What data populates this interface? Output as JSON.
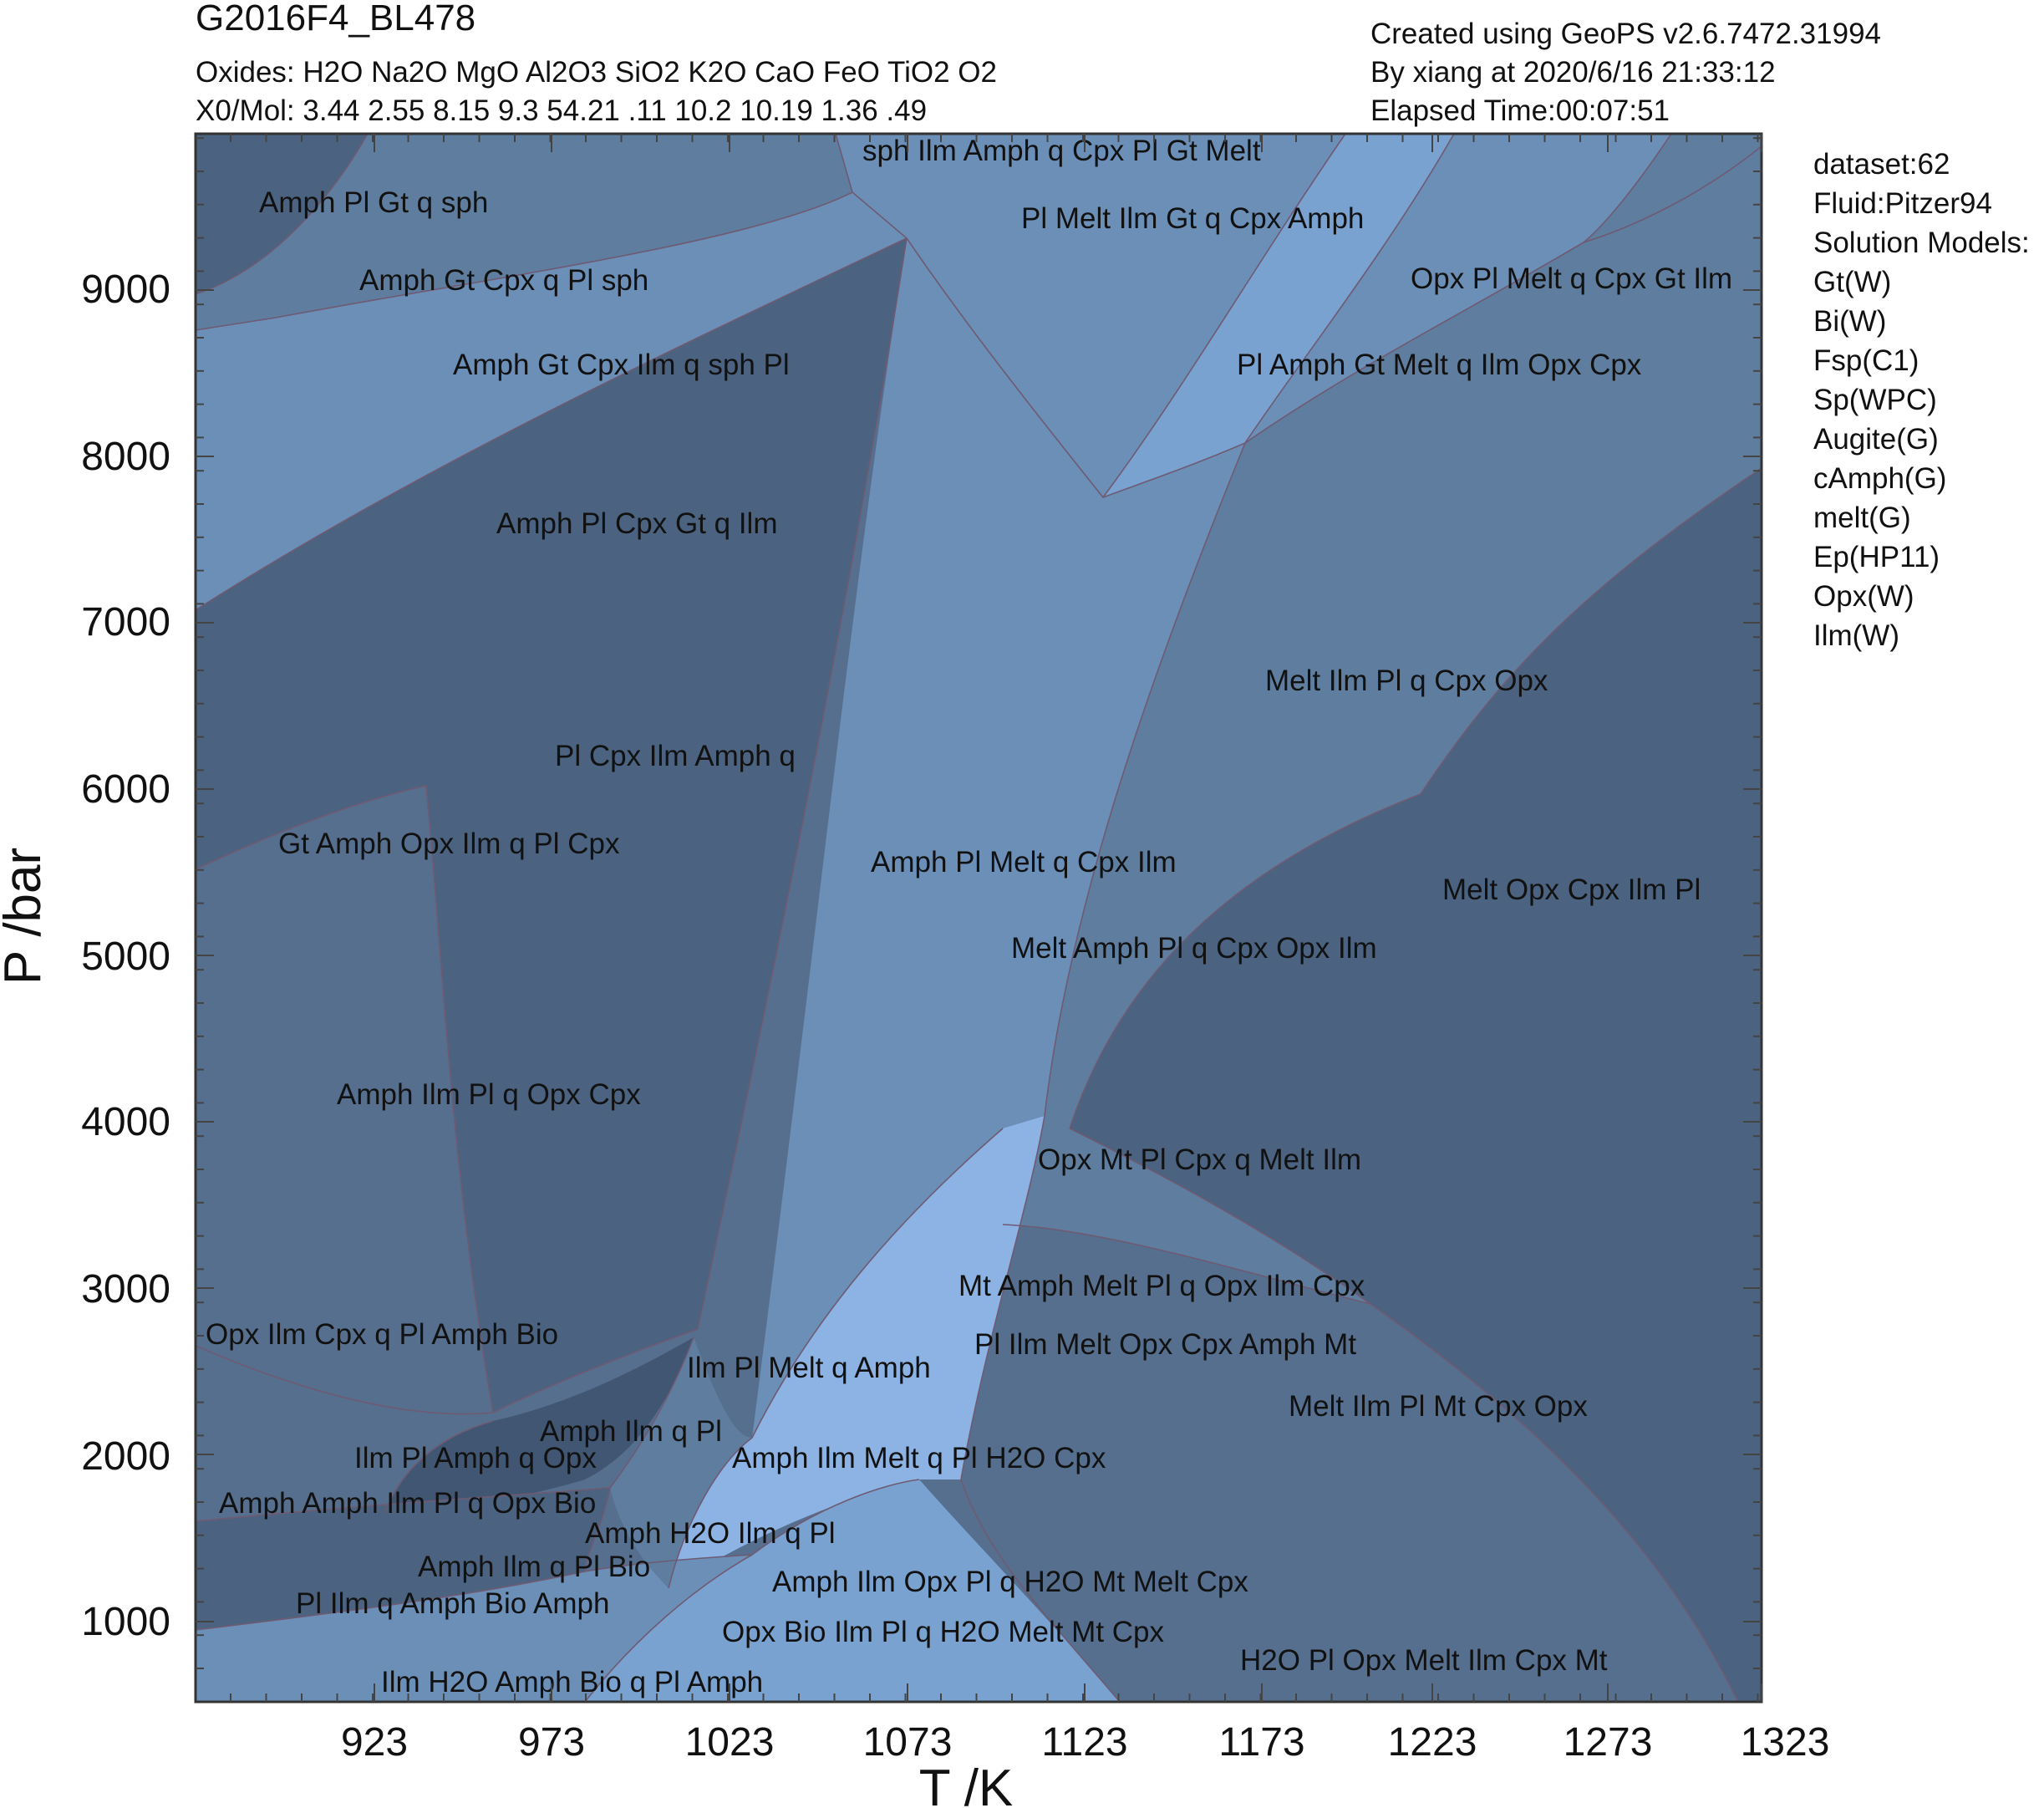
{
  "header": {
    "sample_name": "G2016F4_BL478",
    "oxides_line": "Oxides: H2O Na2O MgO Al2O3 SiO2 K2O CaO FeO TiO2 O2",
    "x0_line": "X0/Mol: 3.44 2.55 8.15 9.3 54.21 .11 10.2 10.19 1.36 .49",
    "created_line": "Created using GeoPS v2.6.7472.31994",
    "by_line": "By xiang at 2020/6/16 21:33:12",
    "elapsed_line": "Elapsed Time:00:07:51"
  },
  "settings": {
    "dataset": "dataset:62",
    "fluid": "Fluid:Pitzer94",
    "solution_models_title": "Solution Models:",
    "solution_models": [
      "Gt(W)",
      "Bi(W)",
      "Fsp(C1)",
      "Sp(WPC)",
      "Augite(G)",
      "cAmph(G)",
      "melt(G)",
      "Ep(HP11)",
      "Opx(W)",
      "Ilm(W)"
    ]
  },
  "axes": {
    "x_label": "T /K",
    "y_label": "P /bar",
    "x_ticks": [
      "923",
      "973",
      "1023",
      "1073",
      "1123",
      "1173",
      "1223",
      "1273",
      "1323"
    ],
    "y_ticks": [
      "1000",
      "2000",
      "3000",
      "4000",
      "5000",
      "6000",
      "7000",
      "8000",
      "9000"
    ]
  },
  "colors": {
    "boundary": "#6e5a72",
    "shades": [
      "#8cb3e3",
      "#7aa2d0",
      "#6c8fb8",
      "#5f7e9f",
      "#566f8e",
      "#4b6380",
      "#415672"
    ]
  },
  "fields": [
    {
      "label": "sph Ilm Amph q Cpx Pl Gt Melt"
    },
    {
      "label": "Amph Pl Gt q sph"
    },
    {
      "label": "Pl Melt Ilm Gt q Cpx Amph"
    },
    {
      "label": "Amph Gt Cpx q Pl sph"
    },
    {
      "label": "Opx Pl Melt q Cpx Gt Ilm"
    },
    {
      "label": "Amph Gt Cpx Ilm q sph Pl"
    },
    {
      "label": "Pl Amph Gt Melt q Ilm Opx Cpx"
    },
    {
      "label": "Amph Pl Cpx Gt q Ilm"
    },
    {
      "label": "Melt Ilm Pl q Cpx Opx"
    },
    {
      "label": "Pl Cpx Ilm Amph q"
    },
    {
      "label": "Gt Amph Opx Ilm q Pl Cpx"
    },
    {
      "label": "Amph Pl Melt q Cpx Ilm"
    },
    {
      "label": "Melt Opx Cpx Ilm Pl"
    },
    {
      "label": "Melt Amph Pl q Cpx Opx Ilm"
    },
    {
      "label": "Amph Ilm Pl q Opx Cpx"
    },
    {
      "label": "Opx Mt Pl Cpx q Melt Ilm"
    },
    {
      "label": "Mt Amph Melt Pl q Opx Ilm Cpx"
    },
    {
      "label": "Opx Ilm Cpx q Pl Amph Bio"
    },
    {
      "label": "Pl Ilm Melt Opx Cpx Amph Mt"
    },
    {
      "label": "Ilm Pl Melt q Amph"
    },
    {
      "label": "Melt Ilm Pl Mt Cpx Opx"
    },
    {
      "label": "Amph Ilm q Pl"
    },
    {
      "label": "Ilm Pl Amph q Opx"
    },
    {
      "label": "Amph Ilm Melt q Pl H2O Cpx"
    },
    {
      "label": "Amph Amph Ilm Pl q Opx Bio"
    },
    {
      "label": "Amph H2O Ilm q Pl"
    },
    {
      "label": "Amph Ilm q Pl Bio"
    },
    {
      "label": "Amph Ilm Opx Pl q H2O Mt Melt Cpx"
    },
    {
      "label": "Pl Ilm q Amph Bio Amph"
    },
    {
      "label": "Opx Bio Ilm Pl q H2O Melt Mt Cpx"
    },
    {
      "label": "H2O Pl Opx Melt Ilm Cpx Mt"
    },
    {
      "label": "Ilm H2O Amph Bio q Pl Amph"
    }
  ]
}
